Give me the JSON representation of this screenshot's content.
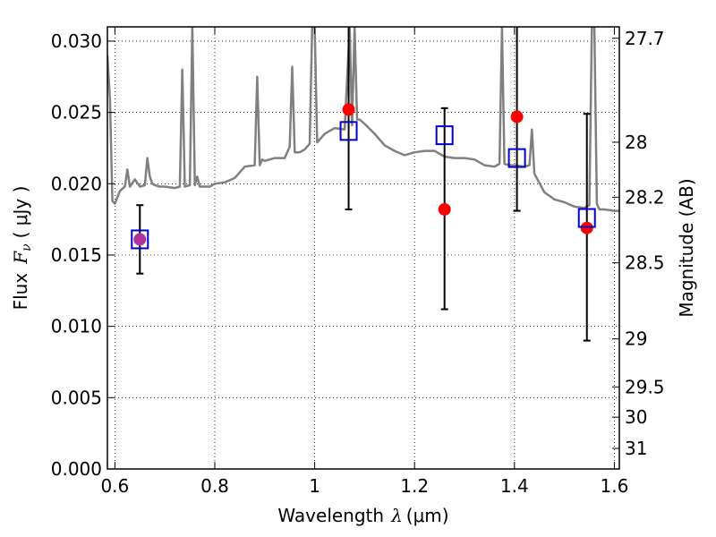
{
  "chart_data": {
    "type": "scatter",
    "xlabel_prefix": "Wavelength",
    "xlabel_symbol": "λ",
    "xlabel_unit": "(μm)",
    "ylabel_prefix": "Flux",
    "ylabel_symbol": "F",
    "ylabel_subscript": "ν",
    "ylabel_unit": "( μJy )",
    "y2label": "Magnitude (AB)",
    "xlim": [
      0.585,
      1.61
    ],
    "ylim": [
      0.0,
      0.031
    ],
    "xticks": [
      {
        "value": 0.6,
        "label": "0.6"
      },
      {
        "value": 0.8,
        "label": "0.8"
      },
      {
        "value": 1.0,
        "label": "1"
      },
      {
        "value": 1.2,
        "label": "1.2"
      },
      {
        "value": 1.4,
        "label": "1.4"
      },
      {
        "value": 1.6,
        "label": "1.6"
      }
    ],
    "yticks": [
      {
        "value": 0.0,
        "label": "0.000"
      },
      {
        "value": 0.005,
        "label": "0.005"
      },
      {
        "value": 0.01,
        "label": "0.010"
      },
      {
        "value": 0.015,
        "label": "0.015"
      },
      {
        "value": 0.02,
        "label": "0.020"
      },
      {
        "value": 0.025,
        "label": "0.025"
      },
      {
        "value": 0.03,
        "label": "0.030"
      }
    ],
    "y2ticks": [
      {
        "mag": 27.7,
        "label": "27.7"
      },
      {
        "mag": 28.0,
        "label": "28"
      },
      {
        "mag": 28.2,
        "label": "28.2"
      },
      {
        "mag": 28.5,
        "label": "28.5"
      },
      {
        "mag": 29.0,
        "label": "29"
      },
      {
        "mag": 29.5,
        "label": "29.5"
      },
      {
        "mag": 30.0,
        "label": "30"
      },
      {
        "mag": 31.0,
        "label": "31"
      }
    ],
    "grid": true,
    "colors": {
      "spectrum": "#808080",
      "observed": "#ff0000",
      "model": "#0000cc",
      "overlap": "#b030a0",
      "errorbar": "#000000"
    },
    "series": [
      {
        "kind": "observed",
        "points": [
          {
            "x": 0.65,
            "y": 0.0161,
            "yerr_low": 0.0137,
            "yerr_high": 0.0185
          },
          {
            "x": 1.068,
            "y": 0.0252,
            "yerr_low": 0.0182,
            "yerr_high": 0.0322
          },
          {
            "x": 1.26,
            "y": 0.0182,
            "yerr_low": 0.0112,
            "yerr_high": 0.0253
          },
          {
            "x": 1.405,
            "y": 0.0247,
            "yerr_low": 0.0181,
            "yerr_high": 0.0318
          },
          {
            "x": 1.545,
            "y": 0.0169,
            "yerr_low": 0.009,
            "yerr_high": 0.0249
          }
        ]
      },
      {
        "kind": "model",
        "points": [
          {
            "x": 0.65,
            "y": 0.0161
          },
          {
            "x": 1.068,
            "y": 0.0237
          },
          {
            "x": 1.26,
            "y": 0.0234
          },
          {
            "x": 1.405,
            "y": 0.0218
          },
          {
            "x": 1.545,
            "y": 0.0176
          }
        ]
      },
      {
        "kind": "spectrum",
        "x": [
          0.585,
          0.59,
          0.595,
          0.6,
          0.61,
          0.62,
          0.625,
          0.63,
          0.64,
          0.65,
          0.66,
          0.665,
          0.67,
          0.675,
          0.68,
          0.69,
          0.7,
          0.72,
          0.73,
          0.735,
          0.74,
          0.75,
          0.755,
          0.76,
          0.765,
          0.77,
          0.79,
          0.8,
          0.82,
          0.84,
          0.86,
          0.88,
          0.885,
          0.89,
          0.895,
          0.9,
          0.92,
          0.94,
          0.95,
          0.955,
          0.96,
          0.97,
          0.98,
          0.99,
          0.995,
          1.0,
          1.005,
          1.01,
          1.02,
          1.04,
          1.06,
          1.07,
          1.075,
          1.08,
          1.085,
          1.09,
          1.1,
          1.12,
          1.14,
          1.16,
          1.18,
          1.2,
          1.22,
          1.24,
          1.26,
          1.28,
          1.3,
          1.32,
          1.34,
          1.36,
          1.37,
          1.375,
          1.38,
          1.39,
          1.4,
          1.42,
          1.43,
          1.435,
          1.44,
          1.46,
          1.48,
          1.5,
          1.52,
          1.54,
          1.55,
          1.555,
          1.56,
          1.565,
          1.57,
          1.58,
          1.6,
          1.61
        ],
        "y": [
          0.029,
          0.026,
          0.0188,
          0.0186,
          0.0195,
          0.0198,
          0.021,
          0.0198,
          0.0203,
          0.0198,
          0.0199,
          0.0218,
          0.0205,
          0.02,
          0.0199,
          0.0198,
          0.0198,
          0.0197,
          0.0198,
          0.028,
          0.0198,
          0.0199,
          0.031,
          0.0199,
          0.0205,
          0.0198,
          0.0198,
          0.02,
          0.0201,
          0.0204,
          0.0212,
          0.0213,
          0.0275,
          0.0213,
          0.0217,
          0.0216,
          0.0218,
          0.0218,
          0.0226,
          0.0282,
          0.0222,
          0.0222,
          0.0224,
          0.0228,
          0.031,
          0.031,
          0.0229,
          0.0231,
          0.0235,
          0.0239,
          0.0238,
          0.031,
          0.0241,
          0.031,
          0.0245,
          0.0245,
          0.0242,
          0.0235,
          0.0227,
          0.0223,
          0.022,
          0.0222,
          0.0223,
          0.0223,
          0.0219,
          0.0218,
          0.0218,
          0.0217,
          0.0213,
          0.0212,
          0.0214,
          0.031,
          0.0214,
          0.0213,
          0.0213,
          0.0212,
          0.0213,
          0.0238,
          0.0207,
          0.0194,
          0.0189,
          0.0187,
          0.0184,
          0.0183,
          0.0185,
          0.031,
          0.031,
          0.0186,
          0.0182,
          0.0182,
          0.0181,
          0.0181
        ]
      }
    ]
  }
}
